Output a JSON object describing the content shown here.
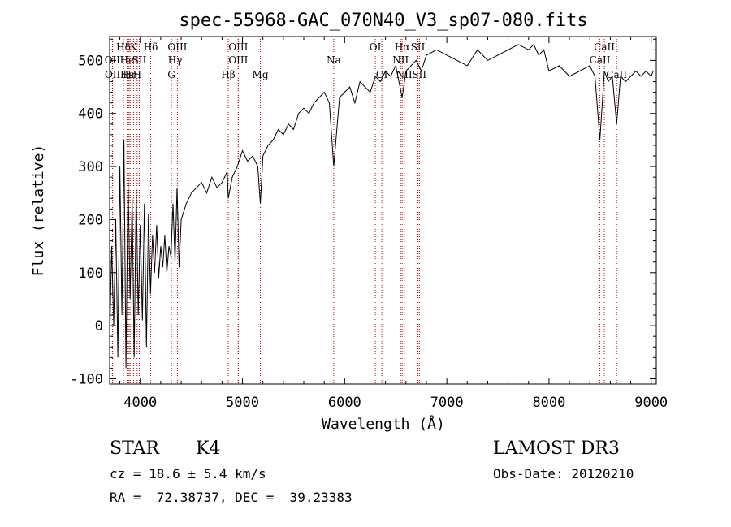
{
  "chart_data": {
    "type": "line",
    "title": "spec-55968-GAC_070N40_V3_sp07-080.fits",
    "xlabel": "Wavelength (Å)",
    "ylabel": "Flux (relative)",
    "xlim": [
      3700,
      9050
    ],
    "ylim": [
      -110,
      545
    ],
    "x_ticks": [
      4000,
      5000,
      6000,
      7000,
      8000,
      9000
    ],
    "y_ticks": [
      -100,
      0,
      100,
      200,
      300,
      400,
      500
    ],
    "grid": false,
    "series": [
      {
        "name": "spectrum",
        "x": [
          3700,
          3720,
          3740,
          3760,
          3780,
          3800,
          3820,
          3840,
          3860,
          3880,
          3900,
          3920,
          3940,
          3960,
          3980,
          4000,
          4020,
          4040,
          4060,
          4080,
          4100,
          4120,
          4140,
          4160,
          4180,
          4200,
          4220,
          4240,
          4260,
          4280,
          4300,
          4320,
          4340,
          4360,
          4380,
          4400,
          4450,
          4500,
          4550,
          4600,
          4650,
          4700,
          4750,
          4800,
          4850,
          4861,
          4900,
          4950,
          5000,
          5050,
          5100,
          5150,
          5175,
          5200,
          5250,
          5300,
          5350,
          5400,
          5450,
          5500,
          5550,
          5600,
          5650,
          5700,
          5750,
          5800,
          5850,
          5893,
          5950,
          6000,
          6050,
          6100,
          6150,
          6200,
          6250,
          6300,
          6350,
          6400,
          6450,
          6500,
          6563,
          6600,
          6650,
          6700,
          6750,
          6800,
          6900,
          7000,
          7100,
          7200,
          7300,
          7400,
          7500,
          7600,
          7700,
          7800,
          7850,
          7900,
          7950,
          8000,
          8100,
          8200,
          8300,
          8400,
          8450,
          8498,
          8542,
          8580,
          8620,
          8662,
          8700,
          8750,
          8800,
          8850,
          8900,
          8950,
          9000,
          9020
        ],
        "y": [
          -30,
          150,
          0,
          200,
          -60,
          300,
          20,
          350,
          -80,
          280,
          50,
          240,
          -60,
          260,
          20,
          190,
          10,
          230,
          -40,
          210,
          60,
          170,
          100,
          190,
          90,
          150,
          110,
          170,
          100,
          150,
          130,
          230,
          120,
          260,
          110,
          200,
          230,
          250,
          260,
          270,
          250,
          280,
          260,
          270,
          290,
          240,
          280,
          300,
          330,
          310,
          320,
          300,
          230,
          320,
          340,
          350,
          370,
          360,
          380,
          370,
          400,
          410,
          400,
          420,
          430,
          440,
          420,
          300,
          430,
          440,
          450,
          420,
          460,
          450,
          440,
          470,
          460,
          480,
          470,
          490,
          430,
          480,
          490,
          500,
          480,
          510,
          520,
          510,
          500,
          490,
          520,
          500,
          510,
          520,
          530,
          520,
          530,
          510,
          520,
          480,
          490,
          470,
          480,
          490,
          470,
          350,
          480,
          460,
          470,
          380,
          470,
          460,
          470,
          480,
          470,
          480,
          470,
          480
        ]
      }
    ],
    "lines": [
      {
        "label": "Hδ",
        "x": 3835,
        "row": 1
      },
      {
        "label": "OII",
        "x": 3727,
        "row": 2
      },
      {
        "label": "OII",
        "x": 3729,
        "row": 3
      },
      {
        "label": "Hε",
        "x": 3870,
        "row": 3
      },
      {
        "label": "HeI",
        "x": 3889,
        "row": 2
      },
      {
        "label": "Hη",
        "x": 3900,
        "row": 3
      },
      {
        "label": "K",
        "x": 3934,
        "row": 1
      },
      {
        "label": "SII",
        "x": 3990,
        "row": 2
      },
      {
        "label": "H",
        "x": 3969,
        "row": 3
      },
      {
        "label": "Hδ",
        "x": 4102,
        "row": 1
      },
      {
        "label": "OIII",
        "x": 4363,
        "row": 1
      },
      {
        "label": "Hγ",
        "x": 4340,
        "row": 2
      },
      {
        "label": "G",
        "x": 4305,
        "row": 3
      },
      {
        "label": "Hβ",
        "x": 4861,
        "row": 3
      },
      {
        "label": "OIII",
        "x": 4959,
        "row": 1
      },
      {
        "label": "OIII",
        "x": 4959,
        "row": 2
      },
      {
        "label": "Mg",
        "x": 5175,
        "row": 3
      },
      {
        "label": "Na",
        "x": 5893,
        "row": 2
      },
      {
        "label": "OI",
        "x": 6300,
        "row": 1
      },
      {
        "label": "OI",
        "x": 6364,
        "row": 3
      },
      {
        "label": "Hα",
        "x": 6563,
        "row": 1
      },
      {
        "label": "SII",
        "x": 6717,
        "row": 1
      },
      {
        "label": "NII",
        "x": 6548,
        "row": 2
      },
      {
        "label": "NII",
        "x": 6583,
        "row": 3
      },
      {
        "label": "SII",
        "x": 6731,
        "row": 3
      },
      {
        "label": "CaII",
        "x": 8542,
        "row": 1
      },
      {
        "label": "CaII",
        "x": 8498,
        "row": 2
      },
      {
        "label": "CaII",
        "x": 8662,
        "row": 3
      }
    ]
  },
  "info": {
    "class": "STAR",
    "subclass": "K4",
    "survey": "LAMOST DR3",
    "cz": "cz = 18.6 ± 5.4 km/s",
    "obs_date": "Obs-Date: 20120210",
    "coords": "RA =  72.38737, DEC =  39.23383"
  }
}
